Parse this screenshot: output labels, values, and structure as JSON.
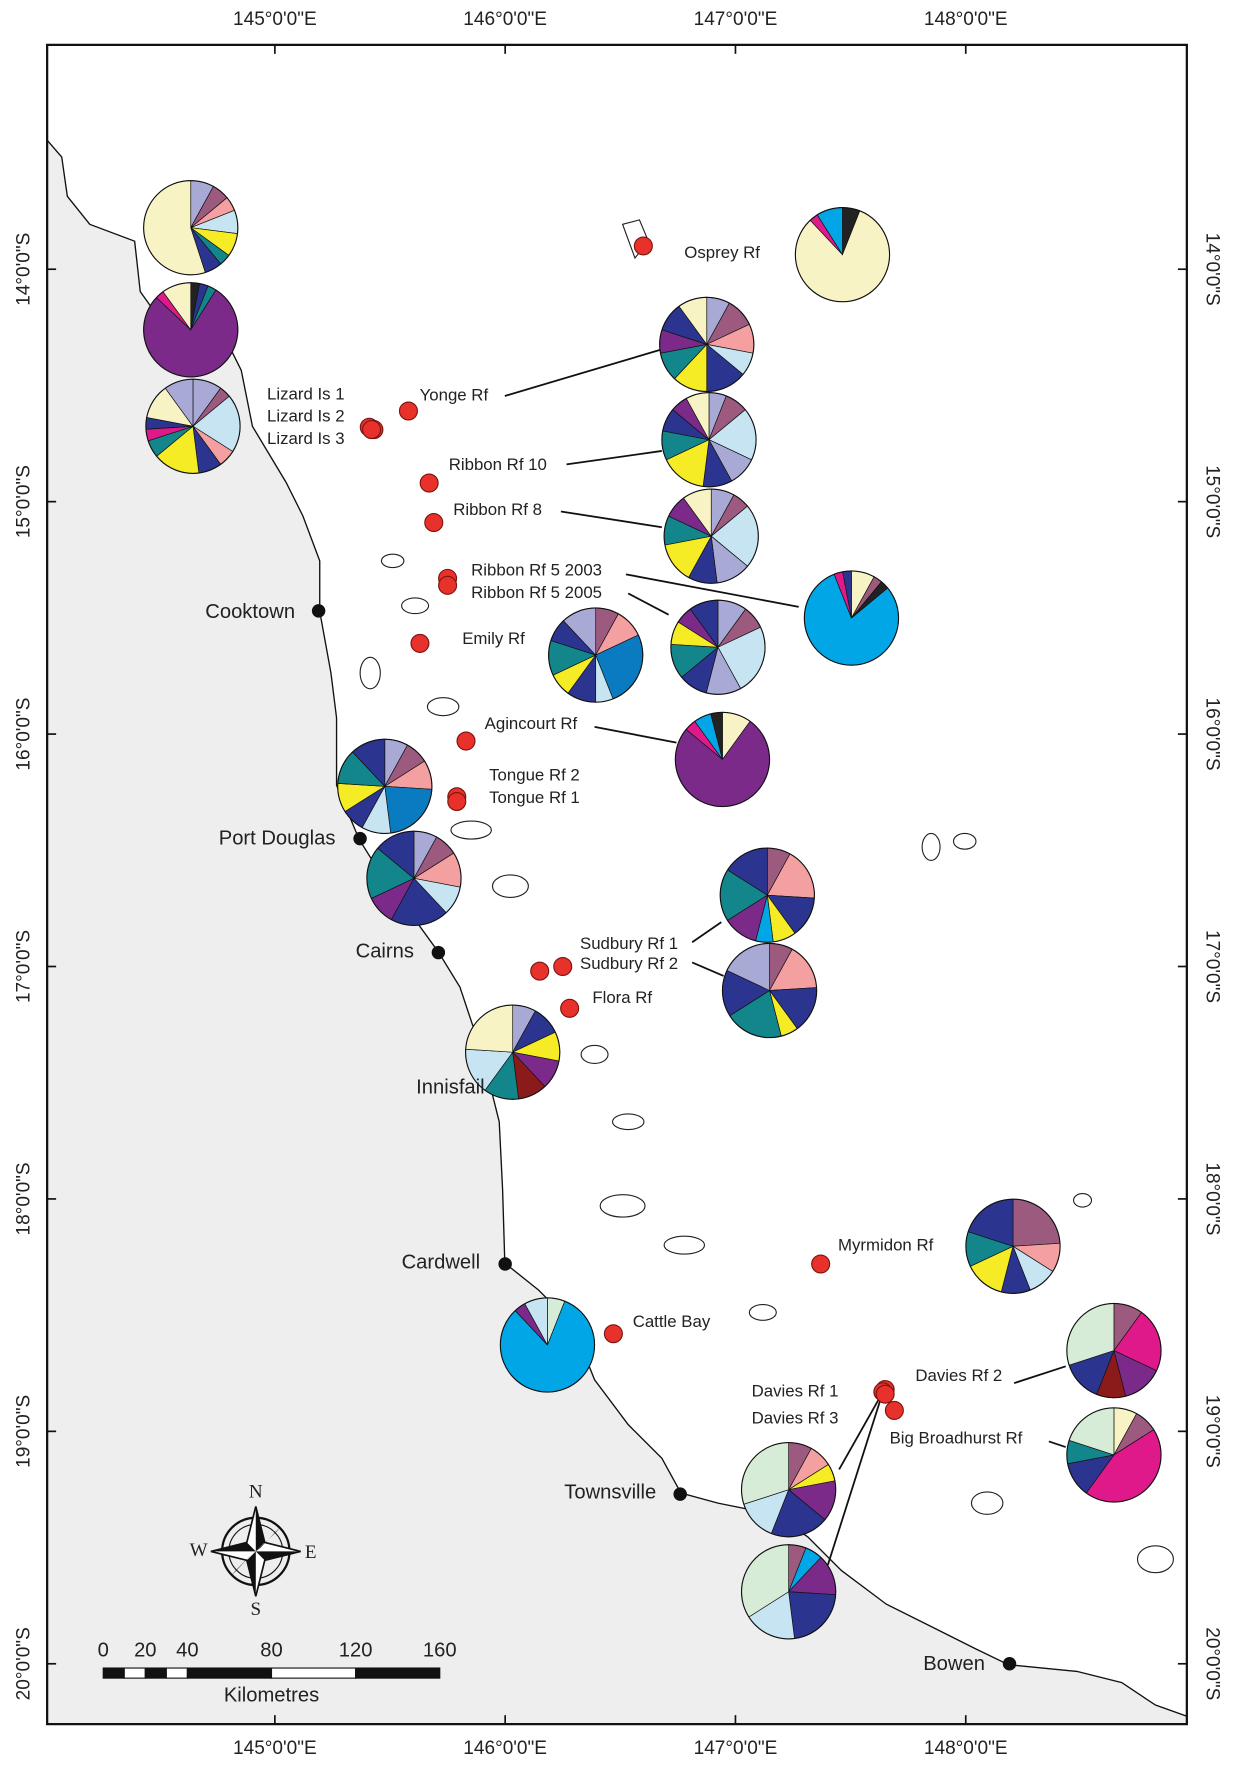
{
  "map": {
    "lon_ticks": [
      {
        "value": 145,
        "label": "145°0'0\"E"
      },
      {
        "value": 146,
        "label": "146°0'0\"E"
      },
      {
        "value": 147,
        "label": "147°0'0\"E"
      },
      {
        "value": 148,
        "label": "148°0'0\"E"
      }
    ],
    "lat_ticks": [
      {
        "value": 14,
        "label": "14°0'0\"S"
      },
      {
        "value": 15,
        "label": "15°0'0\"S"
      },
      {
        "value": 16,
        "label": "16°0'0\"S"
      },
      {
        "value": 17,
        "label": "17°0'0\"S"
      },
      {
        "value": 18,
        "label": "18°0'0\"S"
      },
      {
        "value": 19,
        "label": "19°0'0\"S"
      },
      {
        "value": 20,
        "label": "20°0'0\"S"
      }
    ],
    "towns": [
      {
        "name": "Cooktown",
        "lon": 145.19,
        "lat": 15.47
      },
      {
        "name": "Port Douglas",
        "lon": 145.37,
        "lat": 16.45
      },
      {
        "name": "Cairns",
        "lon": 145.71,
        "lat": 16.94
      },
      {
        "name": "Innisfail",
        "lon": 146.03,
        "lat": 17.47
      },
      {
        "name": "Cardwell",
        "lon": 146.0,
        "lat": 18.28
      },
      {
        "name": "Townsville",
        "lon": 146.76,
        "lat": 19.27
      },
      {
        "name": "Bowen",
        "lon": 148.19,
        "lat": 20.0
      }
    ],
    "sites": [
      {
        "name": "Osprey Rf",
        "lon": 146.6,
        "lat": 13.9
      },
      {
        "name": "Yonge Rf",
        "lon": 145.58,
        "lat": 14.61
      },
      {
        "name": "Lizard Is 1",
        "lon": 145.41,
        "lat": 14.68
      },
      {
        "name": "Lizard Is 2",
        "lon": 145.43,
        "lat": 14.69
      },
      {
        "name": "Lizard Is 3",
        "lon": 145.42,
        "lat": 14.69
      },
      {
        "name": "Ribbon Rf 10",
        "lon": 145.67,
        "lat": 14.92
      },
      {
        "name": "Ribbon Rf 8",
        "lon": 145.69,
        "lat": 15.09
      },
      {
        "name": "Ribbon Rf 5 2003",
        "lon": 145.75,
        "lat": 15.33
      },
      {
        "name": "Ribbon Rf 5 2005",
        "lon": 145.75,
        "lat": 15.36
      },
      {
        "name": "Emily Rf",
        "lon": 145.63,
        "lat": 15.61
      },
      {
        "name": "Agincourt Rf",
        "lon": 145.83,
        "lat": 16.03
      },
      {
        "name": "Tongue Rf 2",
        "lon": 145.79,
        "lat": 16.27
      },
      {
        "name": "Tongue Rf 1",
        "lon": 145.79,
        "lat": 16.29
      },
      {
        "name": "Sudbury Rf 1",
        "lon": 146.25,
        "lat": 17.0
      },
      {
        "name": "Sudbury Rf 2",
        "lon": 146.15,
        "lat": 17.02
      },
      {
        "name": "Flora Rf",
        "lon": 146.28,
        "lat": 17.18
      },
      {
        "name": "Myrmidon Rf",
        "lon": 147.37,
        "lat": 18.28
      },
      {
        "name": "Cattle Bay",
        "lon": 146.47,
        "lat": 18.58
      },
      {
        "name": "Davies Rf 2",
        "lon": 147.65,
        "lat": 18.82
      },
      {
        "name": "Davies Rf 1",
        "lon": 147.64,
        "lat": 18.83
      },
      {
        "name": "Davies Rf 3",
        "lon": 147.65,
        "lat": 18.84
      },
      {
        "name": "Big Broadhurst Rf",
        "lon": 147.69,
        "lat": 18.91
      }
    ],
    "pies": [
      {
        "slices": [
          {
            "value": 8,
            "color": "#a9a9d6"
          },
          {
            "value": 6,
            "color": "#9c5a7f"
          },
          {
            "value": 5,
            "color": "#f4a0a0"
          },
          {
            "value": 8,
            "color": "#c6e4f2"
          },
          {
            "value": 8,
            "color": "#f6ec25"
          },
          {
            "value": 4,
            "color": "#12868a"
          },
          {
            "value": 6,
            "color": "#2b3590"
          },
          {
            "value": 55,
            "color": "#f7f3c4"
          }
        ]
      },
      {
        "slices": [
          {
            "value": 3,
            "color": "#222222"
          },
          {
            "value": 3,
            "color": "#2b3590"
          },
          {
            "value": 3,
            "color": "#12868a"
          },
          {
            "value": 78,
            "color": "#7b2a8a"
          },
          {
            "value": 3,
            "color": "#e0198a"
          },
          {
            "value": 10,
            "color": "#f7f3c4"
          }
        ]
      },
      {
        "slices": [
          {
            "value": 10,
            "color": "#a9a9d6"
          },
          {
            "value": 4,
            "color": "#9c5a7f"
          },
          {
            "value": 20,
            "color": "#c6e4f2"
          },
          {
            "value": 6,
            "color": "#f4a0a0"
          },
          {
            "value": 8,
            "color": "#2b3590"
          },
          {
            "value": 16,
            "color": "#f6ec25"
          },
          {
            "value": 6,
            "color": "#12868a"
          },
          {
            "value": 4,
            "color": "#e0198a"
          },
          {
            "value": 4,
            "color": "#2b3590"
          },
          {
            "value": 12,
            "color": "#f7f3c4"
          },
          {
            "value": 10,
            "color": "#a9a9d6"
          }
        ]
      },
      {
        "slices": [
          {
            "value": 8,
            "color": "#a9a9d6"
          },
          {
            "value": 10,
            "color": "#9c5a7f"
          },
          {
            "value": 10,
            "color": "#f4a0a0"
          },
          {
            "value": 8,
            "color": "#c6e4f2"
          },
          {
            "value": 14,
            "color": "#2b3590"
          },
          {
            "value": 12,
            "color": "#f6ec25"
          },
          {
            "value": 10,
            "color": "#12868a"
          },
          {
            "value": 8,
            "color": "#7b2a8a"
          },
          {
            "value": 10,
            "color": "#2b3590"
          },
          {
            "value": 10,
            "color": "#f7f3c4"
          }
        ]
      },
      {
        "slices": [
          {
            "value": 6,
            "color": "#a9a9d6"
          },
          {
            "value": 8,
            "color": "#9c5a7f"
          },
          {
            "value": 18,
            "color": "#c6e4f2"
          },
          {
            "value": 10,
            "color": "#a9a9d6"
          },
          {
            "value": 10,
            "color": "#2b3590"
          },
          {
            "value": 16,
            "color": "#f6ec25"
          },
          {
            "value": 10,
            "color": "#12868a"
          },
          {
            "value": 8,
            "color": "#2b3590"
          },
          {
            "value": 6,
            "color": "#7b2a8a"
          },
          {
            "value": 8,
            "color": "#f7f3c4"
          }
        ]
      },
      {
        "slices": [
          {
            "value": 8,
            "color": "#a9a9d6"
          },
          {
            "value": 6,
            "color": "#9c5a7f"
          },
          {
            "value": 22,
            "color": "#c6e4f2"
          },
          {
            "value": 12,
            "color": "#a9a9d6"
          },
          {
            "value": 10,
            "color": "#2b3590"
          },
          {
            "value": 14,
            "color": "#f6ec25"
          },
          {
            "value": 10,
            "color": "#12868a"
          },
          {
            "value": 8,
            "color": "#7b2a8a"
          },
          {
            "value": 10,
            "color": "#f7f3c4"
          }
        ]
      },
      {
        "slices": [
          {
            "value": 8,
            "color": "#f7f3c4"
          },
          {
            "value": 3,
            "color": "#9c5a7f"
          },
          {
            "value": 3,
            "color": "#222222"
          },
          {
            "value": 80,
            "color": "#00a6e6"
          },
          {
            "value": 3,
            "color": "#e0198a"
          },
          {
            "value": 3,
            "color": "#2b3590"
          }
        ]
      },
      {
        "slices": [
          {
            "value": 10,
            "color": "#a9a9d6"
          },
          {
            "value": 8,
            "color": "#9c5a7f"
          },
          {
            "value": 24,
            "color": "#c6e4f2"
          },
          {
            "value": 12,
            "color": "#a9a9d6"
          },
          {
            "value": 10,
            "color": "#2b3590"
          },
          {
            "value": 12,
            "color": "#12868a"
          },
          {
            "value": 8,
            "color": "#f6ec25"
          },
          {
            "value": 6,
            "color": "#7b2a8a"
          },
          {
            "value": 10,
            "color": "#2b3590"
          }
        ]
      },
      {
        "slices": [
          {
            "value": 8,
            "color": "#9c5a7f"
          },
          {
            "value": 10,
            "color": "#f4a0a0"
          },
          {
            "value": 26,
            "color": "#0b7bc1"
          },
          {
            "value": 6,
            "color": "#c6e4f2"
          },
          {
            "value": 10,
            "color": "#2b3590"
          },
          {
            "value": 8,
            "color": "#f6ec25"
          },
          {
            "value": 12,
            "color": "#12868a"
          },
          {
            "value": 8,
            "color": "#2b3590"
          },
          {
            "value": 12,
            "color": "#a9a9d6"
          }
        ]
      },
      {
        "slices": [
          {
            "value": 6,
            "color": "#222222"
          },
          {
            "value": 82,
            "color": "#f7f3c4"
          },
          {
            "value": 3,
            "color": "#e0198a"
          },
          {
            "value": 9,
            "color": "#00a6e6"
          }
        ]
      },
      {
        "slices": [
          {
            "value": 10,
            "color": "#f7f3c4"
          },
          {
            "value": 76,
            "color": "#7b2a8a"
          },
          {
            "value": 4,
            "color": "#e0198a"
          },
          {
            "value": 6,
            "color": "#00a6e6"
          },
          {
            "value": 4,
            "color": "#222222"
          }
        ]
      },
      {
        "slices": [
          {
            "value": 8,
            "color": "#a9a9d6"
          },
          {
            "value": 8,
            "color": "#9c5a7f"
          },
          {
            "value": 10,
            "color": "#f4a0a0"
          },
          {
            "value": 22,
            "color": "#0b7bc1"
          },
          {
            "value": 10,
            "color": "#c6e4f2"
          },
          {
            "value": 8,
            "color": "#2b3590"
          },
          {
            "value": 10,
            "color": "#f6ec25"
          },
          {
            "value": 12,
            "color": "#12868a"
          },
          {
            "value": 12,
            "color": "#2b3590"
          }
        ]
      },
      {
        "slices": [
          {
            "value": 8,
            "color": "#a9a9d6"
          },
          {
            "value": 8,
            "color": "#9c5a7f"
          },
          {
            "value": 12,
            "color": "#f4a0a0"
          },
          {
            "value": 10,
            "color": "#c6e4f2"
          },
          {
            "value": 20,
            "color": "#2b3590"
          },
          {
            "value": 10,
            "color": "#7b2a8a"
          },
          {
            "value": 18,
            "color": "#12868a"
          },
          {
            "value": 14,
            "color": "#2b3590"
          }
        ]
      },
      {
        "slices": [
          {
            "value": 8,
            "color": "#9c5a7f"
          },
          {
            "value": 18,
            "color": "#f4a0a0"
          },
          {
            "value": 14,
            "color": "#2b3590"
          },
          {
            "value": 8,
            "color": "#f6ec25"
          },
          {
            "value": 6,
            "color": "#00a6e6"
          },
          {
            "value": 12,
            "color": "#7b2a8a"
          },
          {
            "value": 18,
            "color": "#12868a"
          },
          {
            "value": 16,
            "color": "#2b3590"
          }
        ]
      },
      {
        "slices": [
          {
            "value": 8,
            "color": "#9c5a7f"
          },
          {
            "value": 16,
            "color": "#f4a0a0"
          },
          {
            "value": 16,
            "color": "#2b3590"
          },
          {
            "value": 6,
            "color": "#f6ec25"
          },
          {
            "value": 20,
            "color": "#12868a"
          },
          {
            "value": 16,
            "color": "#2b3590"
          },
          {
            "value": 18,
            "color": "#a9a9d6"
          }
        ]
      },
      {
        "slices": [
          {
            "value": 8,
            "color": "#a9a9d6"
          },
          {
            "value": 10,
            "color": "#2b3590"
          },
          {
            "value": 10,
            "color": "#f6ec25"
          },
          {
            "value": 10,
            "color": "#7b2a8a"
          },
          {
            "value": 10,
            "color": "#8b1a1a"
          },
          {
            "value": 12,
            "color": "#12868a"
          },
          {
            "value": 16,
            "color": "#c6e4f2"
          },
          {
            "value": 24,
            "color": "#f7f3c4"
          }
        ]
      },
      {
        "slices": [
          {
            "value": 24,
            "color": "#9c5a7f"
          },
          {
            "value": 10,
            "color": "#f4a0a0"
          },
          {
            "value": 10,
            "color": "#c6e4f2"
          },
          {
            "value": 10,
            "color": "#2b3590"
          },
          {
            "value": 14,
            "color": "#f6ec25"
          },
          {
            "value": 12,
            "color": "#12868a"
          },
          {
            "value": 20,
            "color": "#2b3590"
          }
        ]
      },
      {
        "slices": [
          {
            "value": 6,
            "color": "#d6ecd6"
          },
          {
            "value": 82,
            "color": "#00a6e6"
          },
          {
            "value": 4,
            "color": "#7b2a8a"
          },
          {
            "value": 8,
            "color": "#c6e4f2"
          }
        ]
      },
      {
        "slices": [
          {
            "value": 10,
            "color": "#9c5a7f"
          },
          {
            "value": 22,
            "color": "#e0198a"
          },
          {
            "value": 14,
            "color": "#7b2a8a"
          },
          {
            "value": 10,
            "color": "#8b1a1a"
          },
          {
            "value": 14,
            "color": "#2b3590"
          },
          {
            "value": 30,
            "color": "#d6ecd6"
          }
        ]
      },
      {
        "slices": [
          {
            "value": 8,
            "color": "#f7f3c4"
          },
          {
            "value": 8,
            "color": "#9c5a7f"
          },
          {
            "value": 44,
            "color": "#e0198a"
          },
          {
            "value": 12,
            "color": "#2b3590"
          },
          {
            "value": 8,
            "color": "#12868a"
          },
          {
            "value": 20,
            "color": "#d6ecd6"
          }
        ]
      },
      {
        "slices": [
          {
            "value": 8,
            "color": "#9c5a7f"
          },
          {
            "value": 8,
            "color": "#f4a0a0"
          },
          {
            "value": 6,
            "color": "#f6ec25"
          },
          {
            "value": 14,
            "color": "#7b2a8a"
          },
          {
            "value": 20,
            "color": "#2b3590"
          },
          {
            "value": 14,
            "color": "#c6e4f2"
          },
          {
            "value": 30,
            "color": "#d6ecd6"
          }
        ]
      },
      {
        "slices": [
          {
            "value": 6,
            "color": "#9c5a7f"
          },
          {
            "value": 6,
            "color": "#00a6e6"
          },
          {
            "value": 14,
            "color": "#7b2a8a"
          },
          {
            "value": 22,
            "color": "#2b3590"
          },
          {
            "value": 18,
            "color": "#c6e4f2"
          },
          {
            "value": 34,
            "color": "#d6ecd6"
          }
        ]
      }
    ],
    "scale_bar": {
      "ticks": [
        0,
        20,
        40,
        80,
        120,
        160
      ],
      "unit": "Kilometres"
    },
    "compass": {
      "north": "N",
      "south": "S",
      "east": "E",
      "west": "W"
    }
  }
}
